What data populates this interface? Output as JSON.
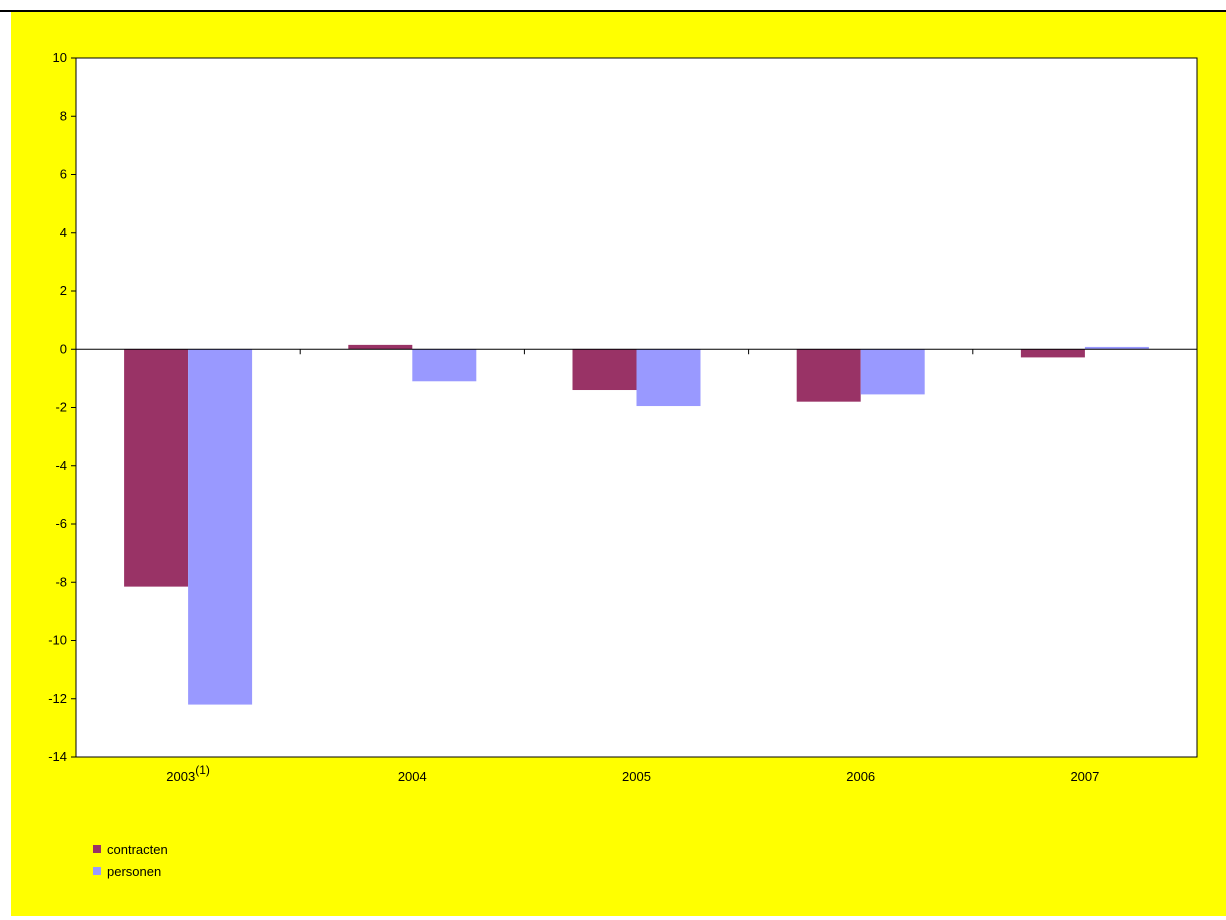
{
  "chart_data": {
    "type": "bar",
    "categories": [
      "2003",
      "2004",
      "2005",
      "2006",
      "2007"
    ],
    "category_footnotes": [
      "(1)",
      "",
      "",
      "",
      ""
    ],
    "series": [
      {
        "name": "contracten",
        "values": [
          -8.15,
          0.15,
          -1.4,
          -1.8,
          -0.28
        ],
        "color": "#993366"
      },
      {
        "name": "personen",
        "values": [
          -12.2,
          -1.1,
          -1.95,
          -1.55,
          0.08
        ],
        "color": "#9999ff"
      }
    ],
    "title": "",
    "xlabel": "",
    "ylabel": "",
    "ylim": [
      -14,
      10
    ],
    "yticks": [
      10,
      8,
      6,
      4,
      2,
      0,
      -2,
      -4,
      -6,
      -8,
      -10,
      -12,
      -14
    ],
    "grid": false,
    "legend_position": "bottom-left",
    "background_color": "#ffff00",
    "plot_background_color": "#ffffff"
  }
}
